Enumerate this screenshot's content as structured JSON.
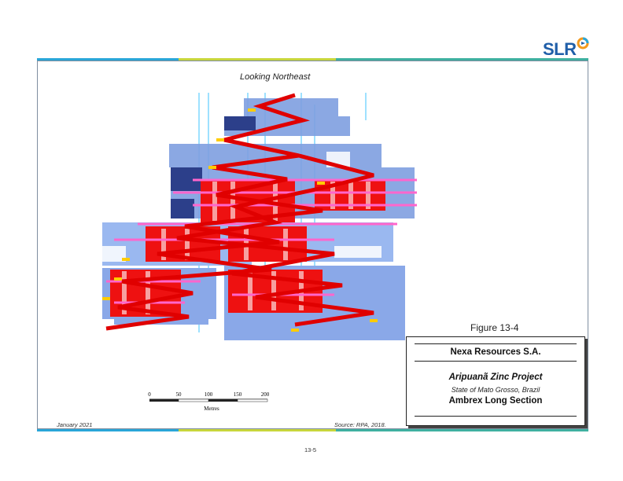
{
  "logo": {
    "text": "SLR",
    "colors": {
      "text": "#1f5ea8",
      "accent_orange": "#f39a1e",
      "accent_blue": "#2aa6d8"
    }
  },
  "rules": {
    "colors": [
      "#2aa6d8",
      "#c8d63c",
      "#3fb0a0"
    ]
  },
  "figure": {
    "view_label": "Looking Northeast",
    "figure_number": "Figure 13-4",
    "section_colors": {
      "blocks": "#7f9fe0",
      "stopes": "#ee1111",
      "drifts": "#ff66cc",
      "raises": "#7fd7ff",
      "drillholes": "#ffcc00"
    }
  },
  "title_block": {
    "company": "Nexa Resources S.A.",
    "project": "Aripuanã Zinc Project",
    "location": "State of Mato Grosso, Brazil",
    "figure_title": "Ambrex Long Section"
  },
  "scale": {
    "ticks": [
      "0",
      "50",
      "100",
      "150",
      "200"
    ],
    "unit": "Metres"
  },
  "footer": {
    "date": "January 2021",
    "source": "Source: RPA, 2018.",
    "page_number": "13-5"
  }
}
